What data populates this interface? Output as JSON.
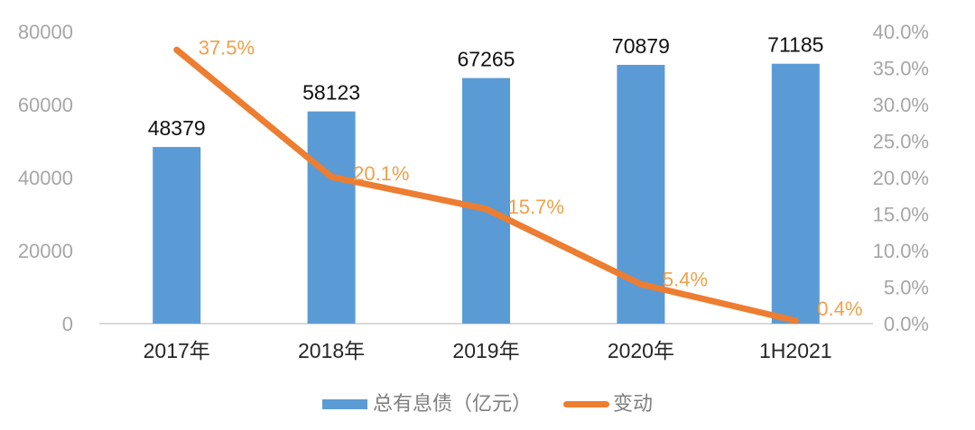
{
  "chart_data": {
    "type": "combo-bar-line",
    "categories": [
      "2017年",
      "2018年",
      "2019年",
      "2020年",
      "1H2021"
    ],
    "series": [
      {
        "name": "总有息债（亿元）",
        "type": "bar",
        "axis": "left",
        "values": [
          48379,
          58123,
          67265,
          70879,
          71185
        ],
        "data_labels": [
          "48379",
          "58123",
          "67265",
          "70879",
          "71185"
        ],
        "color": "#5B9BD5"
      },
      {
        "name": "变动",
        "type": "line",
        "axis": "right",
        "values": [
          37.5,
          20.1,
          15.7,
          5.4,
          0.4
        ],
        "data_labels": [
          "37.5%",
          "20.1%",
          "15.7%",
          "5.4%",
          "0.4%"
        ],
        "color": "#ED7D31",
        "label_color": "#F0A04B"
      }
    ],
    "left_axis": {
      "min": 0,
      "max": 80000,
      "tick_values": [
        80000,
        60000,
        40000,
        20000,
        0
      ],
      "tick_labels": [
        "80000",
        "60000",
        "40000",
        "20000",
        "0"
      ]
    },
    "right_axis": {
      "min": 0,
      "max": 40,
      "tick_values": [
        40,
        35,
        30,
        25,
        20,
        15,
        10,
        5,
        0
      ],
      "tick_labels": [
        "40.0%",
        "35.0%",
        "30.0%",
        "25.0%",
        "20.0%",
        "15.0%",
        "10.0%",
        "5.0%",
        "0.0%"
      ]
    },
    "legend": {
      "position": "bottom",
      "items": [
        "总有息债（亿元）",
        "变动"
      ]
    },
    "grid": "off",
    "title": "",
    "colors": {
      "bar": "#5B9BD5",
      "line": "#ED7D31",
      "line_label": "#F0A04B",
      "axis_tick": "#A6A6A6",
      "category_label": "#262626",
      "bar_label": "#111111",
      "axis_line": "#D9D9D9",
      "legend_text": "#7F7F7F",
      "background": "#FFFFFF"
    }
  }
}
